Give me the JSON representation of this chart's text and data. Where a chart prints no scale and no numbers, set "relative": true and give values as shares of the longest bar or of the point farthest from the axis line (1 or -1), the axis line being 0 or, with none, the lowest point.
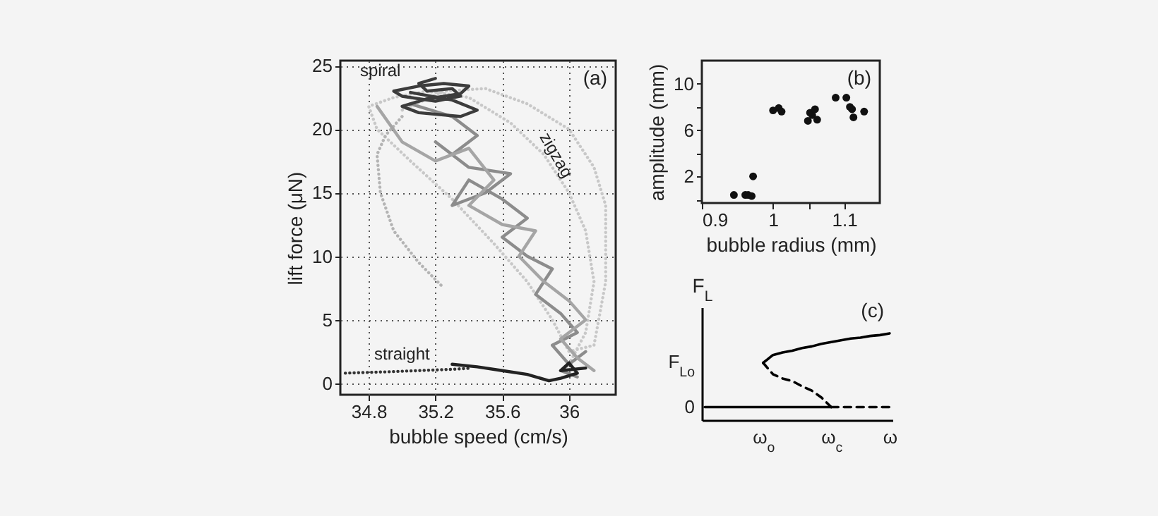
{
  "chart_data": [
    {
      "type": "line",
      "xlabel": "bubble speed (cm/s)",
      "ylabel": "lift force (μN)",
      "xlim": [
        34.63,
        36.28
      ],
      "ylim": [
        -0.9,
        25.4
      ],
      "xticks": [
        34.8,
        35.2,
        35.6,
        36
      ],
      "yticks": [
        0,
        5,
        10,
        15,
        20,
        25
      ],
      "grid": true,
      "annotations": [
        "(a)",
        "spiral",
        "zigzag",
        "straight"
      ],
      "series": [
        {
          "color": "#c8c8c8",
          "line_style": "dotted",
          "x": [
            36.0,
            36.1,
            36.15,
            36.1,
            36.0,
            35.85,
            35.65,
            35.4,
            35.15,
            34.95,
            34.8,
            34.85,
            35.05,
            35.3,
            35.55,
            35.75,
            35.9,
            36.0,
            36.15,
            36.22,
            36.22,
            36.15,
            36.0,
            35.75,
            35.5,
            35.25,
            35.0
          ],
          "values": [
            1.5,
            4,
            8,
            12,
            15,
            18,
            20.5,
            22.5,
            23,
            22.5,
            21.8,
            20,
            17.5,
            14.5,
            11,
            8,
            5,
            2.5,
            3,
            8,
            14,
            17,
            20,
            22,
            23.2,
            23,
            21.5
          ]
        },
        {
          "color": "#b4b4b4",
          "line_style": "dotted",
          "x": [
            35.0,
            34.9,
            34.85,
            34.87,
            34.95,
            35.1,
            35.25
          ],
          "values": [
            21,
            19.5,
            18,
            15,
            12,
            9.5,
            7.5
          ]
        },
        {
          "color": "#8c8c8c",
          "line_style": "solid",
          "x": [
            35.05,
            35.3,
            35.45,
            35.3,
            35.2,
            35.4,
            35.65,
            35.5,
            35.3,
            35.4,
            35.6,
            35.75,
            35.6,
            35.75,
            35.9,
            35.8,
            35.95,
            36.05,
            35.9,
            36.0,
            36.1,
            35.95,
            36.05
          ],
          "values": [
            22,
            21,
            19.5,
            18,
            19,
            17,
            16.5,
            15,
            14,
            16,
            14.5,
            13,
            11.5,
            10,
            9,
            7,
            5.5,
            4,
            3,
            1.5,
            2.5,
            1,
            0.5
          ]
        },
        {
          "color": "#a5a5a5",
          "line_style": "solid",
          "x": [
            34.85,
            35.0,
            35.2,
            35.4,
            35.55,
            35.4,
            35.6,
            35.8,
            35.7,
            35.85,
            36.0,
            36.1,
            35.95,
            36.05,
            36.15
          ],
          "values": [
            21.8,
            19,
            17.5,
            18.5,
            16,
            14,
            12.5,
            12,
            10,
            8,
            6.5,
            5,
            3.5,
            2,
            1
          ]
        },
        {
          "color": "#3c3c3c",
          "line_style": "solid",
          "x": [
            35.2,
            35.1,
            35.15,
            35.3,
            35.35,
            35.2,
            35.0,
            34.95,
            35.1,
            35.25,
            35.4,
            35.35,
            35.15,
            35.0,
            35.1,
            35.35,
            35.45,
            35.3,
            35.05
          ],
          "values": [
            24,
            23.6,
            23,
            23.2,
            22.6,
            22.2,
            22.6,
            23,
            23.4,
            23.6,
            23.4,
            22.8,
            22.4,
            21.8,
            21.3,
            21,
            21.5,
            22.3,
            22.9
          ]
        },
        {
          "color": "#333333",
          "line_style": "dotted",
          "x": [
            34.66,
            34.9,
            35.1,
            35.3,
            35.42
          ],
          "values": [
            0.8,
            0.9,
            1.0,
            1.1,
            1.2
          ]
        },
        {
          "color": "#222222",
          "line_style": "solid",
          "x": [
            35.3,
            35.45,
            35.6,
            35.75,
            35.88,
            35.95,
            36.05,
            36.0,
            35.95,
            36.1
          ],
          "values": [
            1.5,
            1.3,
            1.0,
            0.7,
            0.2,
            0.4,
            0.8,
            1.6,
            1.0,
            1.2
          ]
        }
      ]
    },
    {
      "type": "scatter",
      "xlabel": "bubble radius (mm)",
      "ylabel": "amplitude (mm)",
      "xlim": [
        0.9,
        1.15
      ],
      "ylim": [
        -0.3,
        12
      ],
      "xticks": [
        0.9,
        {
          "value": 1.05,
          "label": null
        },
        1,
        1.1
      ],
      "yticks": [
        {
          "value": 0,
          "label": null
        },
        2,
        {
          "value": 4,
          "label": null
        },
        6,
        {
          "value": 8,
          "label": null
        },
        10
      ],
      "marker": "circle",
      "color": "#111111",
      "annotations": [
        "(b)"
      ],
      "x": [
        0.945,
        0.961,
        0.965,
        0.97,
        0.972,
        1.0,
        1.008,
        1.012,
        1.049,
        1.052,
        1.055,
        1.059,
        1.062,
        1.088,
        1.103,
        1.108,
        1.111,
        1.113,
        1.128
      ],
      "values": [
        0.4,
        0.4,
        0.4,
        0.3,
        2.0,
        7.7,
        7.9,
        7.6,
        6.8,
        7.5,
        7.3,
        7.8,
        6.9,
        8.8,
        8.8,
        8.0,
        7.8,
        7.1,
        7.6
      ]
    },
    {
      "type": "line",
      "relative": true,
      "ylabel": "F$_{L}$",
      "categories": [
        null,
        null,
        null,
        null,
        null,
        null,
        "ω$_{o}$",
        null,
        null,
        null,
        null,
        null,
        null,
        "ω$_{c}$",
        null,
        null,
        null,
        null,
        null,
        "ω"
      ],
      "annotations": [
        "(c)",
        "F$_{Lo}$",
        "0"
      ],
      "series": [
        {
          "color": "#000000",
          "line_style": "solid",
          "values": [
            null,
            null,
            null,
            null,
            null,
            null,
            0.66,
            0.75,
            0.78,
            0.8,
            0.83,
            0.85,
            0.88,
            0.9,
            0.92,
            0.94,
            0.95,
            0.97,
            0.98,
            1
          ]
        },
        {
          "color": "#000000",
          "line_style": "dashed",
          "values": [
            null,
            null,
            null,
            null,
            null,
            null,
            0.66,
            0.53,
            0.48,
            0.45,
            0.39,
            0.34,
            0.26,
            0.15,
            null,
            null,
            null,
            null,
            null,
            null
          ]
        },
        {
          "color": "#000000",
          "line_style": "solid",
          "values": [
            0.15,
            0.15,
            0.15,
            0.15,
            0.15,
            0.15,
            0.15,
            0.15,
            0.15,
            0.15,
            0.15,
            0.15,
            0.15,
            0.15,
            null,
            null,
            null,
            null,
            null,
            null
          ]
        },
        {
          "color": "#000000",
          "line_style": "dashed",
          "values": [
            null,
            null,
            null,
            null,
            null,
            null,
            null,
            null,
            null,
            null,
            null,
            null,
            null,
            0.15,
            0.15,
            0.15,
            0.15,
            0.15,
            0.15,
            0.15
          ]
        }
      ]
    }
  ]
}
